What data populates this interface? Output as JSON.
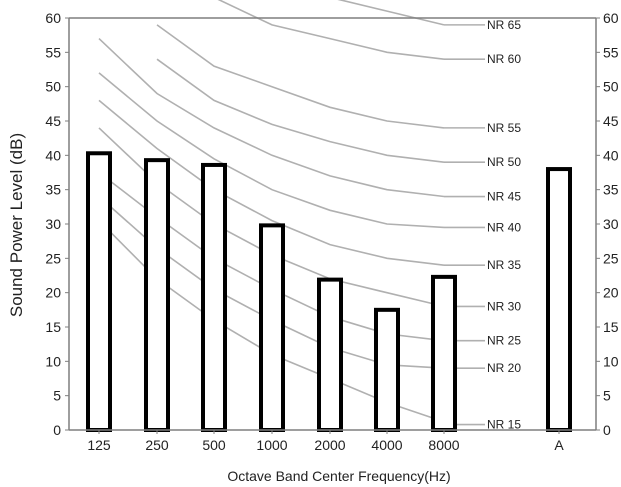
{
  "chart_data": {
    "type": "bar",
    "xlabel": "Octave Band Center Frequency(Hz)",
    "ylabel": "Sound Power Level (dB)",
    "ylim": [
      0,
      60
    ],
    "y_ticks": [
      0,
      5,
      10,
      15,
      20,
      25,
      30,
      35,
      40,
      45,
      50,
      55,
      60
    ],
    "right_axis_ticks": [
      0,
      5,
      10,
      15,
      20,
      25,
      30,
      35,
      40,
      45,
      50,
      55,
      60
    ],
    "grid": false,
    "categories": [
      "125",
      "250",
      "500",
      "1000",
      "2000",
      "4000",
      "8000",
      "A"
    ],
    "values": [
      40.3,
      39.3,
      38.6,
      29.8,
      21.9,
      17.5,
      22.3,
      38.0
    ],
    "colors": {
      "bar_fill": "#ffffff",
      "bar_edge": "#000000",
      "nr_curve": "#b0b0b0",
      "axis": "#7f7f7f"
    },
    "nr_curves": [
      {
        "name": "NR 65",
        "values": [
          null,
          null,
          null,
          null,
          63.0,
          61.0,
          59.0
        ]
      },
      {
        "name": "NR 60",
        "values": [
          null,
          null,
          63.0,
          59.0,
          57.0,
          55.0,
          54.0
        ]
      },
      {
        "name": "NR 55",
        "values": [
          null,
          59.0,
          53.0,
          50.0,
          47.0,
          45.0,
          44.0
        ]
      },
      {
        "name": "NR 50",
        "values": [
          null,
          54.0,
          48.0,
          44.5,
          42.0,
          40.0,
          39.0
        ]
      },
      {
        "name": "NR 45",
        "values": [
          57.0,
          49.0,
          44.0,
          40.0,
          37.0,
          35.0,
          34.0
        ]
      },
      {
        "name": "NR 40",
        "values": [
          52.0,
          45.0,
          39.5,
          35.0,
          32.0,
          30.0,
          29.5
        ]
      },
      {
        "name": "NR 35",
        "values": [
          48.0,
          41.0,
          35.0,
          30.5,
          27.0,
          25.0,
          24.0
        ]
      },
      {
        "name": "NR 30",
        "values": [
          44.0,
          36.0,
          30.0,
          25.5,
          22.0,
          20.0,
          18.0
        ]
      },
      {
        "name": "NR 25",
        "values": [
          37.5,
          31.0,
          25.0,
          20.5,
          16.5,
          14.0,
          13.0
        ]
      },
      {
        "name": "NR 20",
        "values": [
          34.0,
          26.5,
          20.5,
          16.0,
          12.0,
          9.5,
          9.0
        ]
      },
      {
        "name": "NR 15",
        "values": [
          30.5,
          22.0,
          16.0,
          11.0,
          7.5,
          4.0,
          null
        ]
      }
    ]
  }
}
